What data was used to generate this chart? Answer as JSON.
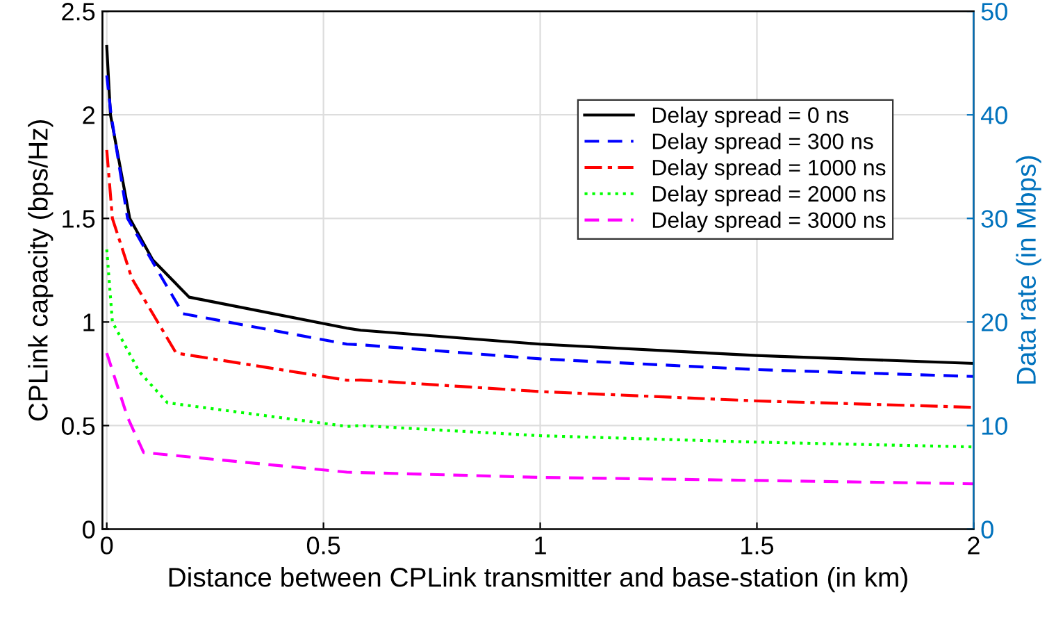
{
  "chart_data": {
    "type": "line",
    "xlabel": "Distance between CPLink transmitter and base-station (in km)",
    "ylabel": "CPLink capacity (bps/Hz)",
    "y2label": "Data rate (in Mbps)",
    "xlim": [
      -0.01,
      2
    ],
    "xticks": [
      0,
      0.5,
      1,
      1.5,
      2
    ],
    "ylim": [
      0,
      2.5
    ],
    "yticks": [
      0,
      0.5,
      1,
      1.5,
      2,
      2.5
    ],
    "y2lim": [
      0,
      50
    ],
    "y2ticks": [
      0,
      10,
      20,
      30,
      40,
      50
    ],
    "grid": true,
    "legend": "top right",
    "series": [
      {
        "name": "Delay spread = 0 ns",
        "color": "#000000",
        "line_style": "solid",
        "x": [
          0,
          0.0085,
          0.053,
          0.106,
          0.19,
          0.554,
          0.586,
          1,
          1.5,
          2
        ],
        "values": [
          2.33,
          2.0,
          1.5,
          1.3,
          1.12,
          0.97,
          0.96,
          0.893,
          0.838,
          0.8
        ]
      },
      {
        "name": "Delay spread = 300 ns",
        "color": "#0000ff",
        "line_style": "dashed",
        "x": [
          0,
          0.01,
          0.048,
          0.128,
          0.176,
          0.554,
          0.586,
          1,
          1.5,
          2
        ],
        "values": [
          2.19,
          2.0,
          1.5,
          1.21,
          1.04,
          0.893,
          0.89,
          0.822,
          0.77,
          0.737
        ]
      },
      {
        "name": "Delay spread = 1000 ns",
        "color": "#ff0000",
        "line_style": "dashdot",
        "x": [
          0,
          0.013,
          0.058,
          0.16,
          0.554,
          0.586,
          1,
          1.5,
          2
        ],
        "values": [
          1.83,
          1.5,
          1.21,
          0.85,
          0.719,
          0.72,
          0.664,
          0.619,
          0.588
        ]
      },
      {
        "name": "Delay spread = 2000 ns",
        "color": "#00ff00",
        "line_style": "dotted",
        "x": [
          0,
          0.013,
          0.075,
          0.14,
          0.554,
          0.586,
          1,
          1.5,
          2
        ],
        "values": [
          1.35,
          1.0,
          0.76,
          0.61,
          0.496,
          0.5,
          0.451,
          0.42,
          0.397
        ]
      },
      {
        "name": "Delay spread = 3000 ns",
        "color": "#ff00ff",
        "line_style": "dashed",
        "x": [
          0,
          0.048,
          0.085,
          0.554,
          1,
          1.5,
          2
        ],
        "values": [
          0.85,
          0.54,
          0.37,
          0.275,
          0.25,
          0.235,
          0.219
        ]
      }
    ]
  }
}
